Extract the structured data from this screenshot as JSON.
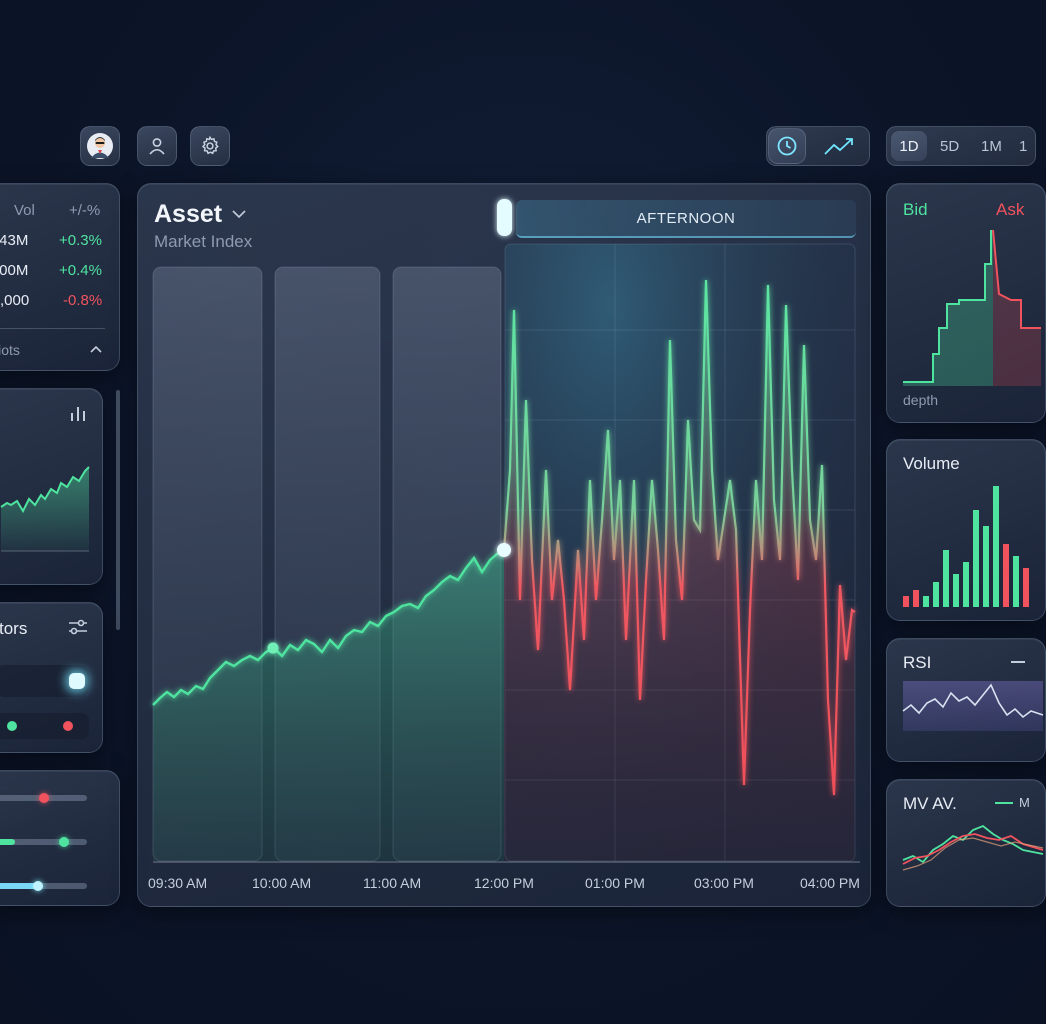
{
  "toolbar": {
    "avatar_icon": "user-avatar",
    "profile_icon": "person-icon",
    "settings_icon": "gear-icon",
    "clock_icon": "clock-icon",
    "trend_icon": "trend-line-icon"
  },
  "timeframes": [
    "1D",
    "5D",
    "1M",
    "1"
  ],
  "timeframe_selected": "1D",
  "ticker": {
    "col_vol": "Vol",
    "col_change": "+/-%",
    "rows": [
      {
        "vol": ".43M",
        "change": "+0.3%",
        "dir": "up"
      },
      {
        "vol": ".00M",
        "change": "+0.4%",
        "dir": "up"
      },
      {
        "vol": "),000",
        "change": "-0.8%",
        "dir": "down"
      }
    ],
    "footer_label": "iiots"
  },
  "indicators": {
    "title": "tors"
  },
  "main_chart": {
    "asset": "Asset",
    "subtitle": "Market Index",
    "session_label": "AFTERNOON",
    "time_labels": [
      "09:30 AM",
      "10:00 AM",
      "11:00 AM",
      "12:00 PM",
      "01:00 PM",
      "03:00 PM",
      "04:00 PM"
    ]
  },
  "depth": {
    "bid": "Bid",
    "ask": "Ask",
    "footer": "depth"
  },
  "volume": {
    "title": "Volume"
  },
  "rsi": {
    "title": "RSI"
  },
  "mva": {
    "title": "MV AV.",
    "legend": "M"
  },
  "colors": {
    "up": "#4fe3a0",
    "down": "#f0535d",
    "accent": "#7ff2ff"
  }
}
